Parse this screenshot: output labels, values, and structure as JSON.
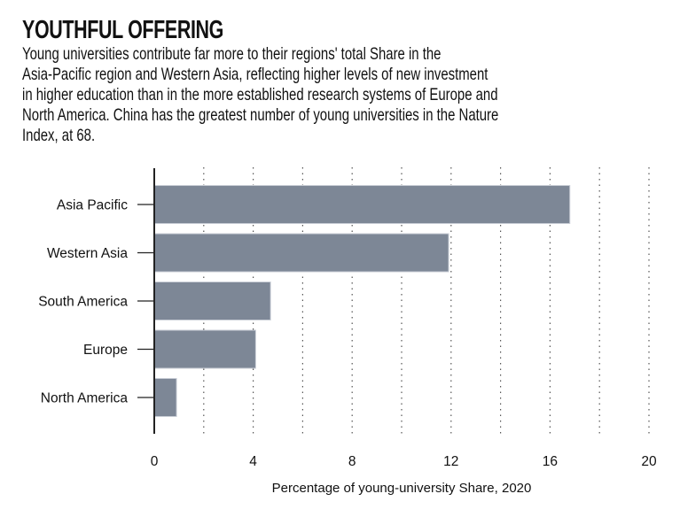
{
  "header": {
    "title": "YOUTHFUL OFFERING",
    "subtitle_lines": [
      "Young universities contribute far more to their regions' total Share in the",
      "Asia-Pacific region and Western Asia, reflecting higher levels of new investment",
      "in higher education than in the more established research systems of Europe and",
      "North America. China has the greatest number of young universities in the Nature",
      "Index, at 68."
    ]
  },
  "colors": {
    "bar": "#7d8796",
    "bar_edge": "#c9ced6",
    "axis": "#222222",
    "grid": "#555555"
  },
  "chart_data": {
    "type": "bar",
    "orientation": "horizontal",
    "title": "YOUTHFUL OFFERING",
    "categories": [
      "Asia Pacific",
      "Western Asia",
      "South America",
      "Europe",
      "North America"
    ],
    "values": [
      16.8,
      11.9,
      4.7,
      4.1,
      0.9
    ],
    "xlabel": "Percentage of young-university Share, 2020",
    "ylabel": "",
    "xlim": [
      0,
      20
    ],
    "xticks": [
      0,
      4,
      8,
      12,
      16,
      20
    ],
    "xtick_labels": [
      "0",
      "4",
      "8",
      "12",
      "16",
      "20"
    ],
    "grid_minor_step": 2,
    "grid": true,
    "grid_style": "dotted vertical"
  }
}
